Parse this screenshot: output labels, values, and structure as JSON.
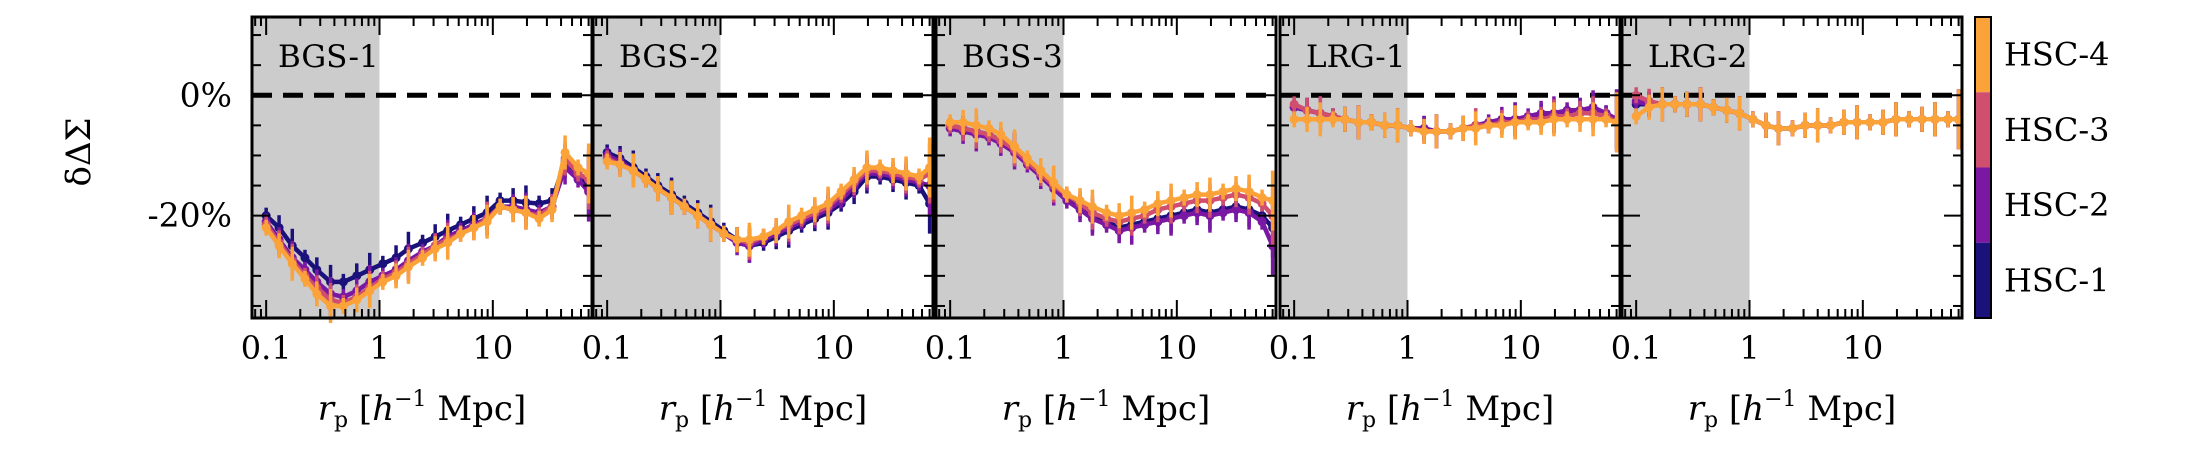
{
  "chart_data": {
    "type": "line",
    "ylabel": "δΔΣ",
    "xlabel": "r_p [h^-1 Mpc]",
    "xlabel_parts": {
      "r": "r",
      "sub": "p",
      "bracket_open": "[",
      "h": "h",
      "exp": "−1",
      "unit": "Mpc]"
    },
    "ylim": [
      -37,
      13
    ],
    "xlim": [
      0.075,
      75
    ],
    "x_scale": "log",
    "y_ticks": [
      {
        "value": 0,
        "label": "0%"
      },
      {
        "value": -20,
        "label": "-20%"
      }
    ],
    "x_ticks": [
      {
        "value": 0.1,
        "label": "0.1"
      },
      {
        "value": 1,
        "label": "1"
      },
      {
        "value": 10,
        "label": "10"
      }
    ],
    "shaded_region": [
      0.075,
      1.0
    ],
    "reference_line": 0,
    "colorbar": {
      "entries": [
        {
          "label": "HSC-4",
          "color": "#fba238"
        },
        {
          "label": "HSC-3",
          "color": "#d04f6e"
        },
        {
          "label": "HSC-2",
          "color": "#7b18a3"
        },
        {
          "label": "HSC-1",
          "color": "#1b117a"
        }
      ]
    },
    "panels": [
      {
        "name": "BGS-1",
        "x": [
          0.1,
          0.13,
          0.17,
          0.22,
          0.28,
          0.37,
          0.48,
          0.63,
          0.82,
          1.07,
          1.4,
          1.8,
          2.4,
          3.1,
          4.0,
          5.2,
          6.8,
          8.9,
          11.6,
          15.1,
          19.6,
          25.6,
          33.3,
          43.4,
          56.5,
          70.0
        ],
        "series": [
          {
            "name": "HSC-1",
            "values": [
              -20,
              -22,
              -25,
              -27,
              -29,
              -31,
              -31,
              -30,
              -29,
              -28,
              -27,
              -25.5,
              -24.5,
              -23.5,
              -22.5,
              -21.5,
              -20.5,
              -19.5,
              -17.5,
              -17.5,
              -17.8,
              -18,
              -17.5,
              -11,
              -13,
              -15
            ]
          },
          {
            "name": "HSC-2",
            "values": [
              -21,
              -24,
              -27,
              -29,
              -31,
              -33,
              -33.5,
              -32.5,
              -31,
              -30,
              -29,
              -27.5,
              -26,
              -25,
              -23.5,
              -22.5,
              -21.5,
              -20.5,
              -18.5,
              -18.5,
              -19,
              -19.5,
              -18.5,
              -12,
              -14,
              -16
            ]
          },
          {
            "name": "HSC-3",
            "values": [
              -21.5,
              -24.5,
              -27.5,
              -30,
              -32,
              -34,
              -34.5,
              -33.5,
              -32,
              -30.5,
              -29.5,
              -28,
              -26.5,
              -25,
              -24,
              -23,
              -22,
              -20.5,
              -18.5,
              -19,
              -19.5,
              -20,
              -18.5,
              -10.5,
              -13,
              -14
            ]
          },
          {
            "name": "HSC-4",
            "values": [
              -22,
              -25,
              -28,
              -30.5,
              -33,
              -35,
              -35,
              -34,
              -32.5,
              -31,
              -30,
              -28.5,
              -27,
              -25.5,
              -24.5,
              -23,
              -22,
              -21,
              -18.5,
              -19,
              -19.5,
              -20.5,
              -19,
              -9.5,
              -12,
              -13
            ]
          }
        ]
      },
      {
        "name": "BGS-2",
        "x": [
          0.1,
          0.13,
          0.17,
          0.22,
          0.28,
          0.37,
          0.48,
          0.63,
          0.82,
          1.07,
          1.4,
          1.8,
          2.4,
          3.1,
          4.0,
          5.2,
          6.8,
          8.9,
          11.6,
          15.1,
          19.6,
          25.6,
          33.3,
          43.4,
          56.5,
          70.0
        ],
        "series": [
          {
            "name": "HSC-1",
            "values": [
              -9.5,
              -10.5,
              -12,
              -13.5,
              -15,
              -16.5,
              -18,
              -19.5,
              -21,
              -22.5,
              -24,
              -25,
              -24.5,
              -23.5,
              -22.5,
              -21.5,
              -20.5,
              -19.5,
              -18,
              -16,
              -13.5,
              -13.5,
              -14,
              -14.5,
              -15,
              -18
            ]
          },
          {
            "name": "HSC-2",
            "values": [
              -10,
              -11,
              -12.5,
              -14,
              -15.5,
              -17,
              -18.5,
              -20,
              -21.5,
              -23,
              -24.5,
              -25,
              -24,
              -23,
              -22,
              -21,
              -20,
              -19,
              -17.5,
              -15,
              -13,
              -13,
              -13.5,
              -14,
              -14.5,
              -15
            ]
          },
          {
            "name": "HSC-3",
            "values": [
              -10.5,
              -11.5,
              -12.5,
              -14,
              -15.5,
              -17,
              -18.5,
              -20,
              -21.5,
              -23,
              -24,
              -24.5,
              -23.5,
              -22.5,
              -21.5,
              -20.5,
              -19.5,
              -18.5,
              -16.5,
              -14.5,
              -12.5,
              -12.5,
              -13,
              -13.5,
              -14,
              -13
            ]
          },
          {
            "name": "HSC-4",
            "values": [
              -11,
              -11.5,
              -12.5,
              -14,
              -15.5,
              -17,
              -18.5,
              -20,
              -21.5,
              -23,
              -24,
              -24,
              -23.5,
              -22.5,
              -21,
              -20,
              -19,
              -18,
              -16,
              -14,
              -12,
              -12,
              -12.5,
              -13,
              -13.5,
              -12
            ]
          }
        ]
      },
      {
        "name": "BGS-3",
        "x": [
          0.1,
          0.13,
          0.17,
          0.22,
          0.28,
          0.37,
          0.48,
          0.63,
          0.82,
          1.07,
          1.4,
          1.8,
          2.4,
          3.1,
          4.0,
          5.2,
          6.8,
          8.9,
          11.6,
          15.1,
          19.6,
          25.6,
          33.3,
          43.4,
          56.5,
          70.0
        ],
        "series": [
          {
            "name": "HSC-1",
            "values": [
              -5,
              -5.5,
              -6,
              -6.5,
              -7.5,
              -9,
              -11,
              -13,
              -15,
              -17,
              -18.5,
              -20,
              -21,
              -22,
              -21.5,
              -21,
              -20.5,
              -20,
              -19.5,
              -19,
              -19.5,
              -19,
              -18.5,
              -19,
              -20,
              -22
            ]
          },
          {
            "name": "HSC-2",
            "values": [
              -5.5,
              -6,
              -6.5,
              -7,
              -8,
              -9.5,
              -11.5,
              -13.5,
              -15.5,
              -17.5,
              -19,
              -20.5,
              -21.5,
              -22.5,
              -22,
              -21.5,
              -21,
              -20.5,
              -20,
              -19.5,
              -20,
              -19.5,
              -19,
              -19.5,
              -21,
              -25
            ]
          },
          {
            "name": "HSC-3",
            "values": [
              -5,
              -5.5,
              -6,
              -6.5,
              -7.5,
              -9,
              -11,
              -13,
              -15,
              -16.5,
              -18,
              -19.5,
              -20.5,
              -21,
              -20.5,
              -20,
              -19,
              -18.5,
              -18,
              -17.5,
              -17.5,
              -17,
              -16.5,
              -17,
              -18,
              -20
            ]
          },
          {
            "name": "HSC-4",
            "values": [
              -4.5,
              -4.5,
              -5,
              -5.5,
              -6.5,
              -8.5,
              -10.5,
              -12.5,
              -14.5,
              -16.5,
              -17.5,
              -18.5,
              -19.5,
              -20,
              -19.5,
              -19,
              -18,
              -17.5,
              -17,
              -16.5,
              -16.5,
              -16,
              -15.5,
              -16,
              -17,
              -17.5
            ]
          }
        ]
      },
      {
        "name": "LRG-1",
        "x": [
          0.1,
          0.13,
          0.17,
          0.22,
          0.28,
          0.37,
          0.48,
          0.63,
          0.82,
          1.07,
          1.4,
          1.8,
          2.4,
          3.1,
          4.0,
          5.2,
          6.8,
          8.9,
          11.6,
          15.1,
          19.6,
          25.6,
          33.3,
          43.4,
          56.5,
          70.0
        ],
        "series": [
          {
            "name": "HSC-1",
            "values": [
              -2,
              -2.5,
              -3,
              -3.5,
              -4,
              -4.5,
              -4.5,
              -5,
              -5,
              -5.5,
              -5.5,
              -6,
              -6,
              -5.5,
              -5,
              -5,
              -4.5,
              -4,
              -4,
              -3.5,
              -3.5,
              -3,
              -2.5,
              -2.5,
              -3,
              -4
            ]
          },
          {
            "name": "HSC-2",
            "values": [
              -2,
              -2.5,
              -3,
              -3.5,
              -4,
              -4.5,
              -4.5,
              -5,
              -5,
              -5.5,
              -5.5,
              -6,
              -6,
              -5.5,
              -5,
              -4.5,
              -4,
              -4,
              -3.5,
              -3,
              -3,
              -2.5,
              -2.5,
              -2,
              -3,
              -4
            ]
          },
          {
            "name": "HSC-3",
            "values": [
              -1.5,
              -2.5,
              -3,
              -3.5,
              -4,
              -4.5,
              -4.5,
              -5,
              -5,
              -5.5,
              -6,
              -6,
              -6,
              -5.5,
              -5,
              -5,
              -4.5,
              -4.5,
              -4,
              -4,
              -3.5,
              -3.5,
              -3,
              -3,
              -3.5,
              -4.5
            ]
          },
          {
            "name": "HSC-4",
            "values": [
              -4,
              -4,
              -4,
              -4,
              -4,
              -4.5,
              -4.5,
              -5,
              -5,
              -5.5,
              -6,
              -6,
              -6,
              -5.5,
              -5.5,
              -5,
              -5,
              -4.5,
              -4.5,
              -4.5,
              -4,
              -4,
              -4,
              -4,
              -4,
              -4.5
            ]
          }
        ]
      },
      {
        "name": "LRG-2",
        "x": [
          0.1,
          0.13,
          0.17,
          0.22,
          0.28,
          0.37,
          0.48,
          0.63,
          0.82,
          1.07,
          1.4,
          1.8,
          2.4,
          3.1,
          4.0,
          5.2,
          6.8,
          8.9,
          11.6,
          15.1,
          19.6,
          25.6,
          33.3,
          43.4,
          56.5,
          70.0
        ],
        "series": [
          {
            "name": "HSC-1",
            "values": [
              -1.5,
              -1.5,
              -1.5,
              -1.5,
              -1.5,
              -1.5,
              -2,
              -2.5,
              -3,
              -4,
              -5,
              -5.5,
              -5.5,
              -5,
              -5,
              -5,
              -4.5,
              -4.5,
              -4.5,
              -4.5,
              -4,
              -4,
              -4,
              -4,
              -4,
              -4
            ]
          },
          {
            "name": "HSC-2",
            "values": [
              -1,
              -1.5,
              -1.5,
              -1.5,
              -1.5,
              -1.5,
              -2,
              -2.5,
              -3,
              -4,
              -5,
              -5.5,
              -5.5,
              -5,
              -5,
              -5,
              -4.5,
              -4.5,
              -4.5,
              -4.5,
              -4,
              -4,
              -4,
              -4,
              -4,
              -4
            ]
          },
          {
            "name": "HSC-3",
            "values": [
              0,
              -1,
              -1.5,
              -1.5,
              -1.5,
              -1.5,
              -2,
              -2.5,
              -3,
              -4,
              -5,
              -5.5,
              -5.5,
              -5,
              -5,
              -5,
              -4.5,
              -4.5,
              -4.5,
              -4.5,
              -4,
              -4,
              -4,
              -4,
              -4,
              -4
            ]
          },
          {
            "name": "HSC-4",
            "values": [
              -3.5,
              -2,
              -1.5,
              -1.5,
              -1.5,
              -1.5,
              -2,
              -2.5,
              -3,
              -4,
              -5,
              -5.5,
              -5.5,
              -5,
              -5,
              -5,
              -4.5,
              -4.5,
              -4.5,
              -4.5,
              -4,
              -4,
              -4,
              -4,
              -4,
              -4
            ]
          }
        ]
      }
    ]
  }
}
